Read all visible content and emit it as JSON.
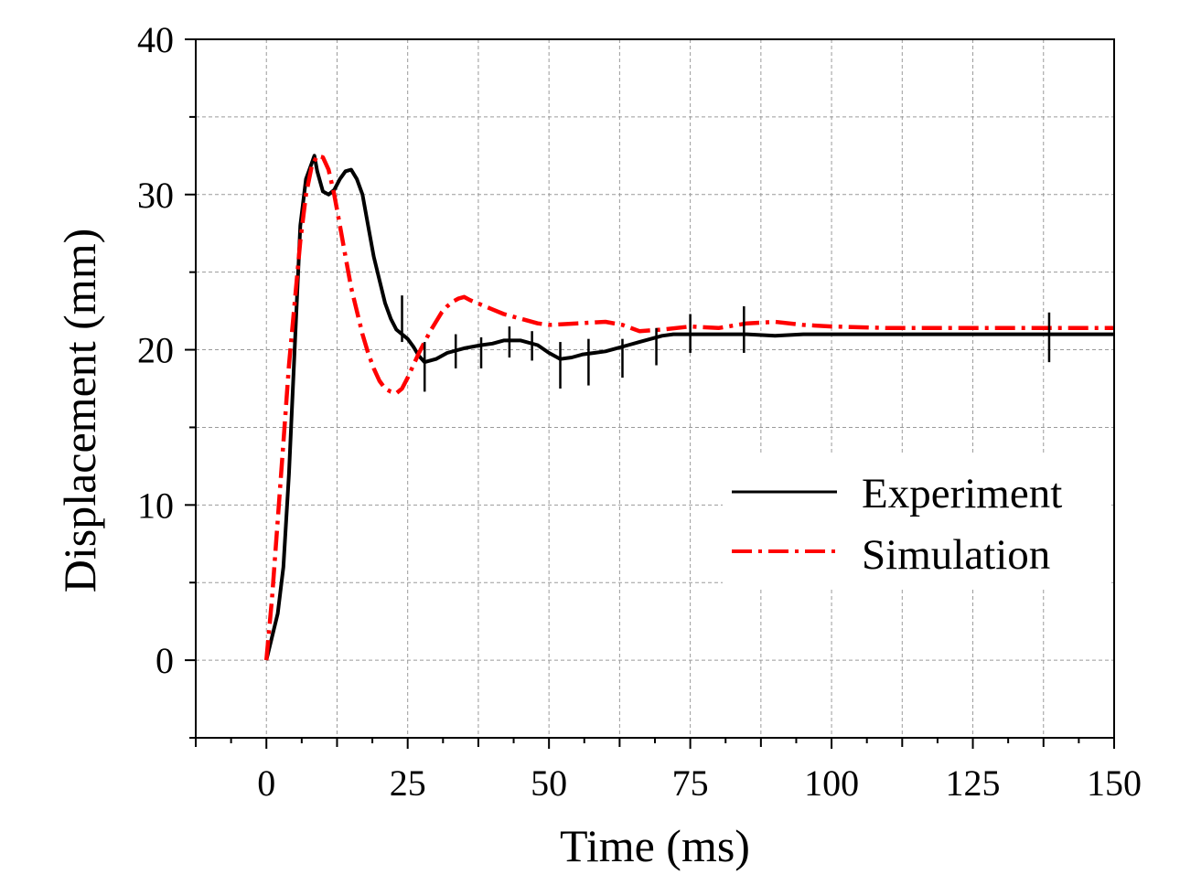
{
  "chart_data": {
    "type": "line",
    "title": "",
    "xlabel": "Time (ms)",
    "ylabel": "Displacement (mm)",
    "xlim": [
      -12.5,
      150
    ],
    "ylim": [
      -5,
      40
    ],
    "xticks": [
      0,
      25,
      50,
      75,
      100,
      125,
      150
    ],
    "xtick_labels": [
      "0",
      "25",
      "50",
      "75",
      "100",
      "125",
      "150"
    ],
    "yticks": [
      0,
      10,
      20,
      30,
      40
    ],
    "ytick_labels": [
      "0",
      "10",
      "20",
      "30",
      "40"
    ],
    "grid": true,
    "legend_position": "center-right",
    "series": [
      {
        "name": "Experiment",
        "color": "#000000",
        "style": "solid",
        "x": [
          0,
          1,
          2,
          3,
          4,
          5,
          6,
          7,
          8,
          8.5,
          9,
          10,
          11,
          12,
          13,
          14,
          15,
          16,
          17,
          18,
          19,
          20,
          21,
          22,
          23,
          24,
          25,
          26,
          27,
          28,
          30,
          32,
          35,
          38,
          40,
          42,
          45,
          48,
          50,
          52,
          54,
          56,
          58,
          60,
          62,
          64,
          66,
          68,
          70,
          72,
          75,
          80,
          85,
          90,
          95,
          100,
          110,
          120,
          130,
          140,
          150
        ],
        "y": [
          0,
          1.5,
          3,
          6,
          12,
          20,
          28,
          31,
          32,
          32.5,
          31.5,
          30.2,
          30,
          30.3,
          31,
          31.5,
          31.6,
          31,
          30,
          28,
          26,
          24.5,
          23,
          22,
          21.3,
          21,
          20.7,
          20.2,
          19.6,
          19.2,
          19.4,
          19.8,
          20.1,
          20.3,
          20.4,
          20.6,
          20.6,
          20.3,
          19.8,
          19.4,
          19.5,
          19.7,
          19.8,
          19.9,
          20.1,
          20.3,
          20.5,
          20.7,
          20.9,
          21,
          21,
          21,
          21,
          20.9,
          21,
          21,
          21,
          21,
          21,
          21,
          21
        ]
      },
      {
        "name": "Simulation",
        "color": "#ff0000",
        "style": "dash-dot",
        "x": [
          0,
          1,
          2,
          3,
          4,
          5,
          6,
          7,
          8,
          9,
          10,
          11,
          12,
          13,
          14,
          15,
          16,
          17,
          18,
          19,
          20,
          21,
          22,
          23,
          24,
          25,
          26,
          27,
          28,
          29,
          30,
          31,
          32,
          33,
          34,
          35,
          36,
          38,
          40,
          42,
          45,
          48,
          50,
          55,
          60,
          63,
          66,
          70,
          75,
          80,
          85,
          90,
          95,
          100,
          110,
          120,
          130,
          140,
          150
        ],
        "y": [
          0,
          4,
          9,
          14,
          19,
          23,
          27,
          30,
          31.8,
          32.5,
          32.4,
          31.6,
          30,
          28,
          26,
          24,
          22.5,
          21,
          19.8,
          18.8,
          18,
          17.5,
          17.3,
          17.2,
          17.5,
          18.2,
          19,
          19.8,
          20.5,
          21.2,
          21.8,
          22.4,
          22.8,
          23.1,
          23.3,
          23.4,
          23.2,
          22.9,
          22.6,
          22.3,
          22,
          21.7,
          21.6,
          21.7,
          21.8,
          21.6,
          21.2,
          21.3,
          21.5,
          21.4,
          21.7,
          21.8,
          21.6,
          21.5,
          21.4,
          21.4,
          21.4,
          21.4,
          21.4
        ]
      }
    ],
    "spikes": [
      {
        "x": 24,
        "y0": 20.5,
        "y1": 23.5
      },
      {
        "x": 28,
        "y0": 17.3,
        "y1": 20.5
      },
      {
        "x": 33.5,
        "y0": 18.8,
        "y1": 21
      },
      {
        "x": 38,
        "y0": 18.8,
        "y1": 20.8
      },
      {
        "x": 43,
        "y0": 19.5,
        "y1": 21.5
      },
      {
        "x": 47,
        "y0": 19.3,
        "y1": 21.2
      },
      {
        "x": 52,
        "y0": 17.5,
        "y1": 20.5
      },
      {
        "x": 57,
        "y0": 17.7,
        "y1": 20.7
      },
      {
        "x": 63,
        "y0": 18.2,
        "y1": 20.7
      },
      {
        "x": 69,
        "y0": 19,
        "y1": 21.4
      },
      {
        "x": 75,
        "y0": 19.8,
        "y1": 22.3
      },
      {
        "x": 84.5,
        "y0": 19.8,
        "y1": 22.8
      },
      {
        "x": 138.5,
        "y0": 19.2,
        "y1": 22.4
      }
    ]
  }
}
